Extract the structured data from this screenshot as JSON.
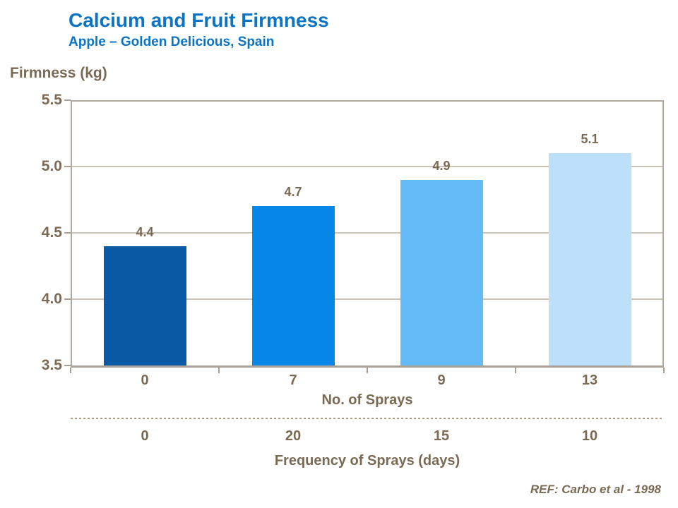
{
  "header": {
    "title": "Calcium and Fruit Firmness",
    "subtitle": "Apple – Golden Delicious, Spain"
  },
  "chart_data": {
    "type": "bar",
    "title": "Calcium and Fruit Firmness",
    "subtitle": "Apple – Golden Delicious, Spain",
    "ylabel": "Firmness (kg)",
    "ylim": [
      3.5,
      5.5
    ],
    "yticks": [
      3.5,
      4.0,
      4.5,
      5.0,
      5.5
    ],
    "categories": [
      "0",
      "7",
      "9",
      "13"
    ],
    "values": [
      4.4,
      4.7,
      4.9,
      5.1
    ],
    "bar_colors": [
      "#0A5AA5",
      "#0787E8",
      "#64BBF8",
      "#BCE0FA"
    ],
    "x_axis_primary_label": "No. of Sprays",
    "secondary_categories": [
      "0",
      "20",
      "15",
      "10"
    ],
    "x_axis_secondary_label": "Frequency of Sprays (days)",
    "grid": true,
    "legend": false
  },
  "footer": {
    "reference": "REF: Carbo et al - 1998"
  },
  "colors": {
    "title_blue": "#0C74C6",
    "text_taupe": "#7A6A54",
    "axis": "#B3A89C",
    "gridline": "#CBC3B8"
  }
}
